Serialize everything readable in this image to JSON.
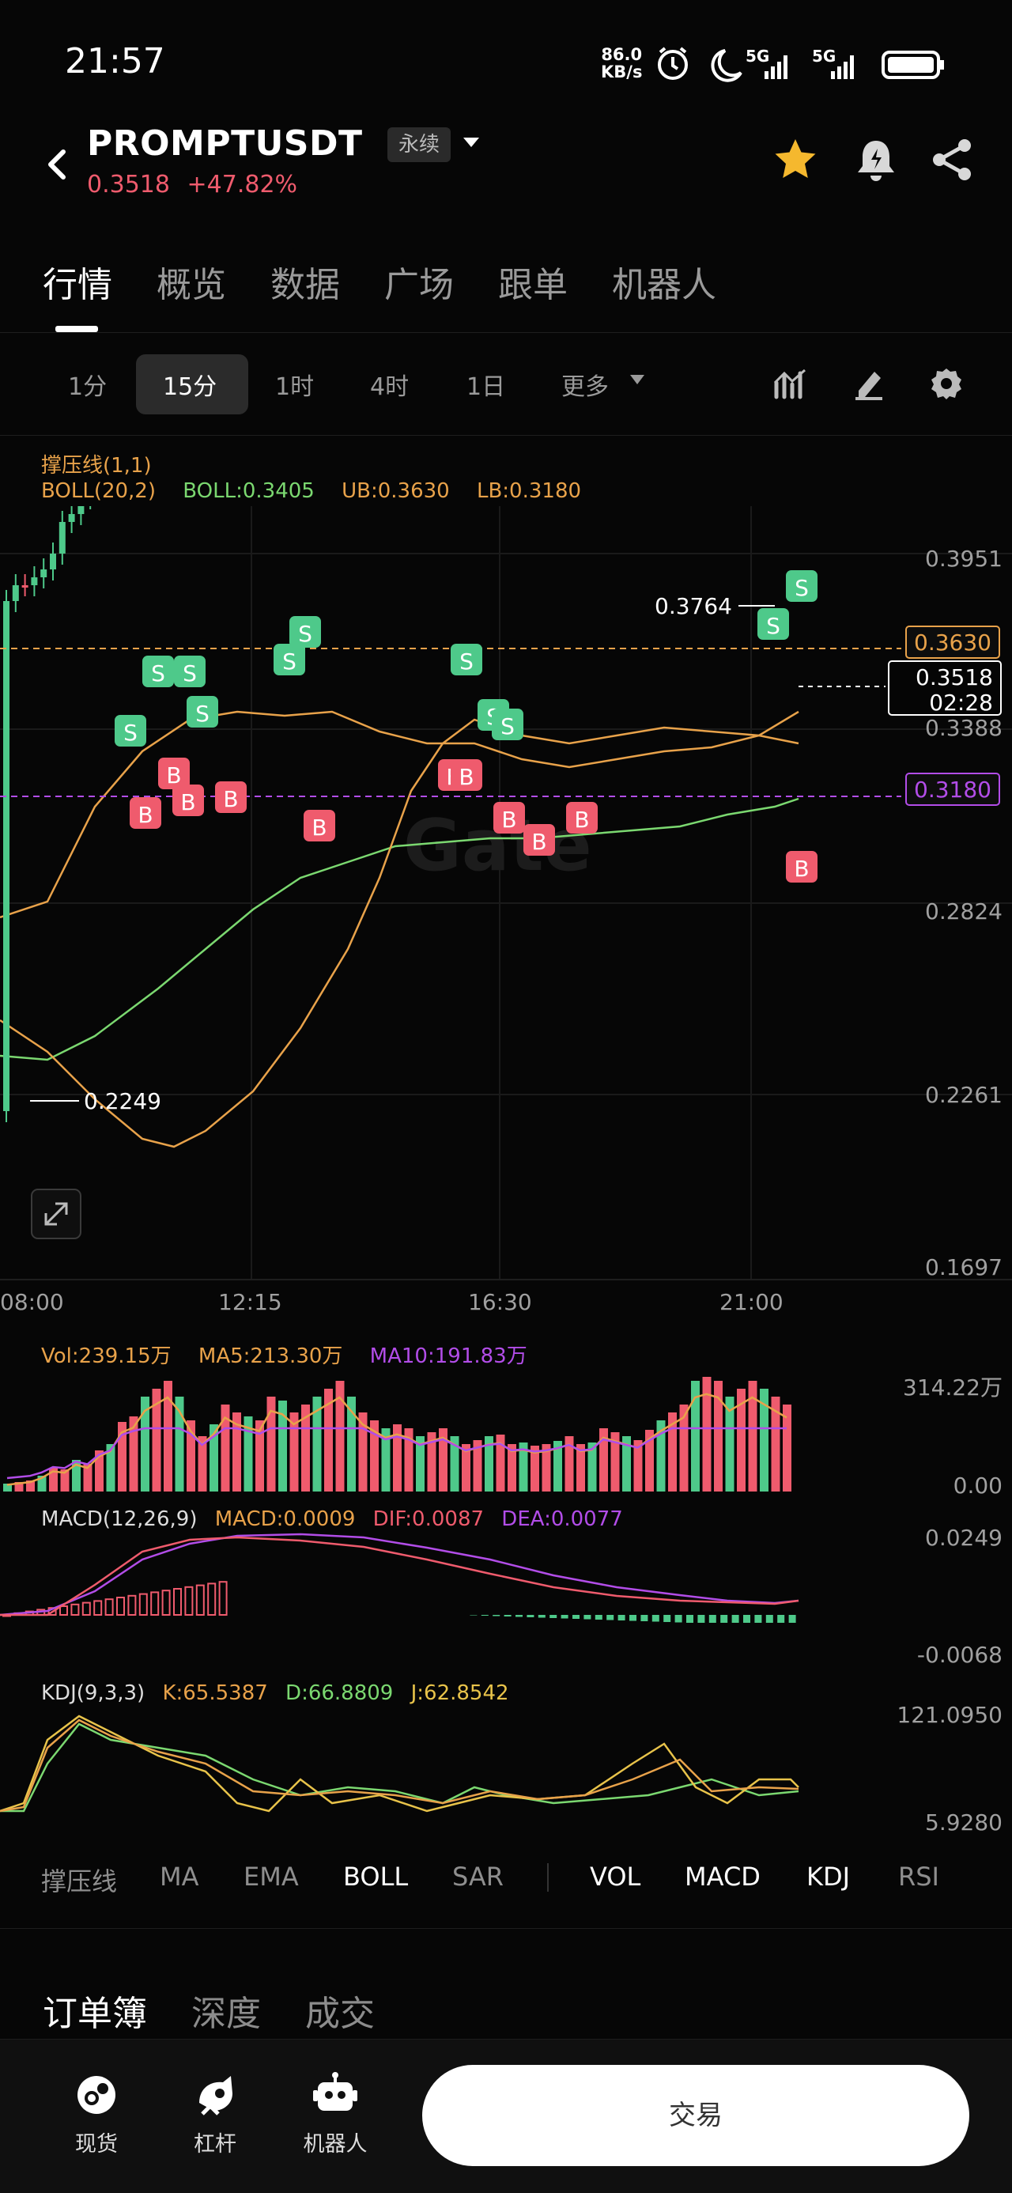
{
  "status_bar": {
    "time": "21:57",
    "speed_value": "86.0",
    "speed_unit": "KB/s",
    "net1": "5G",
    "net2": "5G",
    "icons": [
      "alarm-icon",
      "moon-icon",
      "signal-icon",
      "battery-icon"
    ]
  },
  "header": {
    "symbol": "PROMPTUSDT",
    "contract_type": "永续",
    "price": "0.3518",
    "change": "+47.82%",
    "icons": [
      "back-icon",
      "star-icon",
      "bell-icon",
      "share-icon"
    ],
    "colors": {
      "star": "#f5b82e",
      "down": "#ef5b6d",
      "up": "#4ec98a"
    }
  },
  "main_tabs": [
    "行情",
    "概览",
    "数据",
    "广场",
    "跟单",
    "机器人"
  ],
  "timeframes": {
    "items": [
      "1分",
      "15分",
      "1时",
      "4时",
      "1日",
      "更多"
    ],
    "active": "15分"
  },
  "indicators": {
    "line1": "撑压线(1,1)",
    "boll_label": "BOLL(20,2)",
    "boll_mid": "BOLL:0.3405",
    "boll_ub": "UB:0.3630",
    "boll_lb": "LB:0.3180"
  },
  "price_axis": {
    "ticks": [
      "0.3951",
      "0.3388",
      "0.2824",
      "0.2261",
      "0.1697"
    ],
    "ub_tag": "0.3630",
    "lb_tag": "0.3180",
    "last_price": "0.3518",
    "countdown": "02:28",
    "high_marker": "0.3764",
    "low_marker": "0.2249"
  },
  "time_axis": [
    "08:00",
    "12:15",
    "16:30",
    "21:00"
  ],
  "watermark": "Gate",
  "trade_marks": {
    "buy": "B",
    "sell": "S"
  },
  "volume": {
    "vol": "Vol:239.15万",
    "ma5": "MA5:213.30万",
    "ma10": "MA10:191.83万",
    "max": "314.22万",
    "min": "0.00"
  },
  "macd": {
    "label": "MACD(12,26,9)",
    "macd": "MACD:0.0009",
    "dif": "DIF:0.0087",
    "dea": "DEA:0.0077",
    "max": "0.0249",
    "min": "-0.0068"
  },
  "kdj": {
    "label": "KDJ(9,3,3)",
    "k": "K:65.5387",
    "d": "D:66.8809",
    "j": "J:62.8542",
    "max": "121.0950",
    "min": "5.9280"
  },
  "indicator_tabs": {
    "main": [
      "撑压线",
      "MA",
      "EMA",
      "BOLL",
      "SAR"
    ],
    "sub": [
      "VOL",
      "MACD",
      "KDJ",
      "RSI"
    ],
    "active": [
      "BOLL",
      "VOL",
      "MACD",
      "KDJ"
    ]
  },
  "orderbook_tabs": [
    "订单簿",
    "深度",
    "成交"
  ],
  "bottom_nav": {
    "items": [
      "现货",
      "杠杆",
      "机器人"
    ],
    "trade_button": "交易"
  }
}
